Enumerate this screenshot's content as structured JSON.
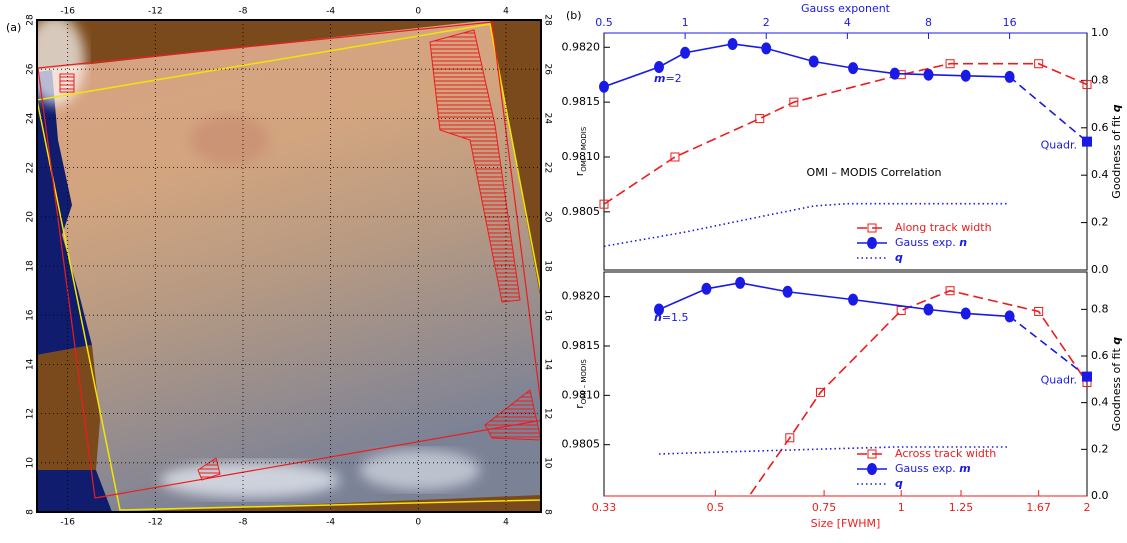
{
  "panel_labels": [
    "(a)",
    "(b)"
  ],
  "chart_data": [
    {
      "type": "map",
      "xlim": [
        -17.4,
        5.6
      ],
      "ylim": [
        8,
        28
      ],
      "xticks": [
        -16,
        -12,
        -8,
        -4,
        0,
        4
      ],
      "yticks": [
        8,
        10,
        12,
        14,
        16,
        18,
        20,
        22,
        24,
        26,
        28
      ],
      "grid": true
    },
    {
      "type": "line",
      "x2label": "Gauss exponent",
      "x2color": "#1a1ae6",
      "x2lim": [
        0.5,
        31
      ],
      "x2scale": "log",
      "x2ticks": [
        0.5,
        1,
        2,
        4,
        8,
        16
      ],
      "xlim": [
        0.33,
        2
      ],
      "xscale": "log",
      "ylim": [
        0.97997,
        0.98213
      ],
      "yticks": [
        0.9805,
        {
          "value": 0.981,
          "label": "0.9810"
        },
        0.9815,
        {
          "value": 0.982,
          "label": "0.9820"
        }
      ],
      "ylabel": "r",
      "ylabel_sub": "OMI – MODIS",
      "y2lim": [
        0,
        1
      ],
      "y2ticks": [
        {
          "value": 0,
          "label": "0.0"
        },
        0.2,
        0.4,
        0.6,
        0.8,
        {
          "value": 1,
          "label": "1.0"
        }
      ],
      "y2label": "Goodness of fit q",
      "note": "m=2",
      "note_color": "#1a1ae6",
      "annotation": "OMI – MODIS Correlation",
      "legend": "lower right",
      "series": [
        {
          "name": "Along track width",
          "color": "#ee1c1c",
          "dash": "dash",
          "marker": "square",
          "x": [
            0.33,
            0.43,
            0.59,
            0.67,
            1,
            1.2,
            1.67,
            2
          ],
          "values": [
            0.98057,
            0.981,
            0.98135,
            0.9815,
            0.98175,
            0.98185,
            0.98185,
            0.98166
          ]
        },
        {
          "name": "Gauss exp. n",
          "color": "#1a1ae6",
          "dash": "solid",
          "marker": "circle",
          "xaxis": "x2",
          "x": [
            0.5,
            0.8,
            1,
            1.5,
            2,
            3,
            4.2,
            6,
            8,
            11,
            16
          ],
          "values": [
            0.98164,
            0.98182,
            0.98195,
            0.98203,
            0.98199,
            0.98187,
            0.98181,
            0.98176,
            0.98175,
            0.98174,
            0.98173
          ],
          "endpoint": {
            "label": "Quadr.",
            "value": 0.98114
          }
        },
        {
          "name": "q",
          "color": "#1a1ae6",
          "dash": "dot",
          "marker": "none",
          "xaxis": "x2",
          "axis": "y2",
          "x": [
            0.5,
            1,
            2,
            3,
            4,
            16
          ],
          "values": [
            0.1,
            0.16,
            0.23,
            0.27,
            0.28,
            0.28
          ]
        }
      ]
    },
    {
      "type": "line",
      "xlabel": "Size [FWHM]",
      "xcolor": "#ee1c1c",
      "xlim": [
        0.33,
        2
      ],
      "xscale": "log",
      "xticks": [
        0.33,
        0.5,
        0.75,
        1,
        1.25,
        1.67,
        2
      ],
      "x2lim": [
        0.5,
        31
      ],
      "x2scale": "log",
      "ylim": [
        0.97998,
        0.98225
      ],
      "yticks": [
        0.9805,
        {
          "value": 0.981,
          "label": "0.9810"
        },
        0.9815,
        {
          "value": 0.982,
          "label": "0.9820"
        }
      ],
      "ylabel": "r",
      "ylabel_sub": "OMI – MODIS",
      "y2lim": [
        0,
        0.96
      ],
      "y2ticks": [
        {
          "value": 0,
          "label": "0.0"
        },
        0.2,
        0.4,
        0.6,
        0.8
      ],
      "y2label": "Goodness of fit q",
      "note": "n=1.5",
      "note_color": "#1a1ae6",
      "legend": "lower right",
      "series": [
        {
          "name": "Across track width",
          "color": "#ee1c1c",
          "dash": "dash",
          "marker": "square",
          "x": [
            0.57,
            0.66,
            0.74,
            1,
            1.2,
            1.67,
            2
          ],
          "values": [
            0.98,
            0.98057,
            0.98103,
            0.98186,
            0.98206,
            0.98185,
            0.98113
          ]
        },
        {
          "name": "Gauss exp. m",
          "color": "#1a1ae6",
          "dash": "solid",
          "marker": "circle",
          "xaxis": "x2",
          "x": [
            0.8,
            1.2,
            1.6,
            2.4,
            4.2,
            8,
            11,
            16
          ],
          "values": [
            0.98187,
            0.98208,
            0.98214,
            0.98205,
            0.98197,
            0.98187,
            0.98183,
            0.9818
          ],
          "endpoint": {
            "label": "Quadr.",
            "value": 0.98119
          }
        },
        {
          "name": "q",
          "color": "#1a1ae6",
          "dash": "dot",
          "marker": "none",
          "xaxis": "x2",
          "axis": "y2",
          "x": [
            0.8,
            1.5,
            3,
            6,
            16
          ],
          "values": [
            0.18,
            0.19,
            0.2,
            0.21,
            0.21
          ]
        }
      ]
    }
  ]
}
